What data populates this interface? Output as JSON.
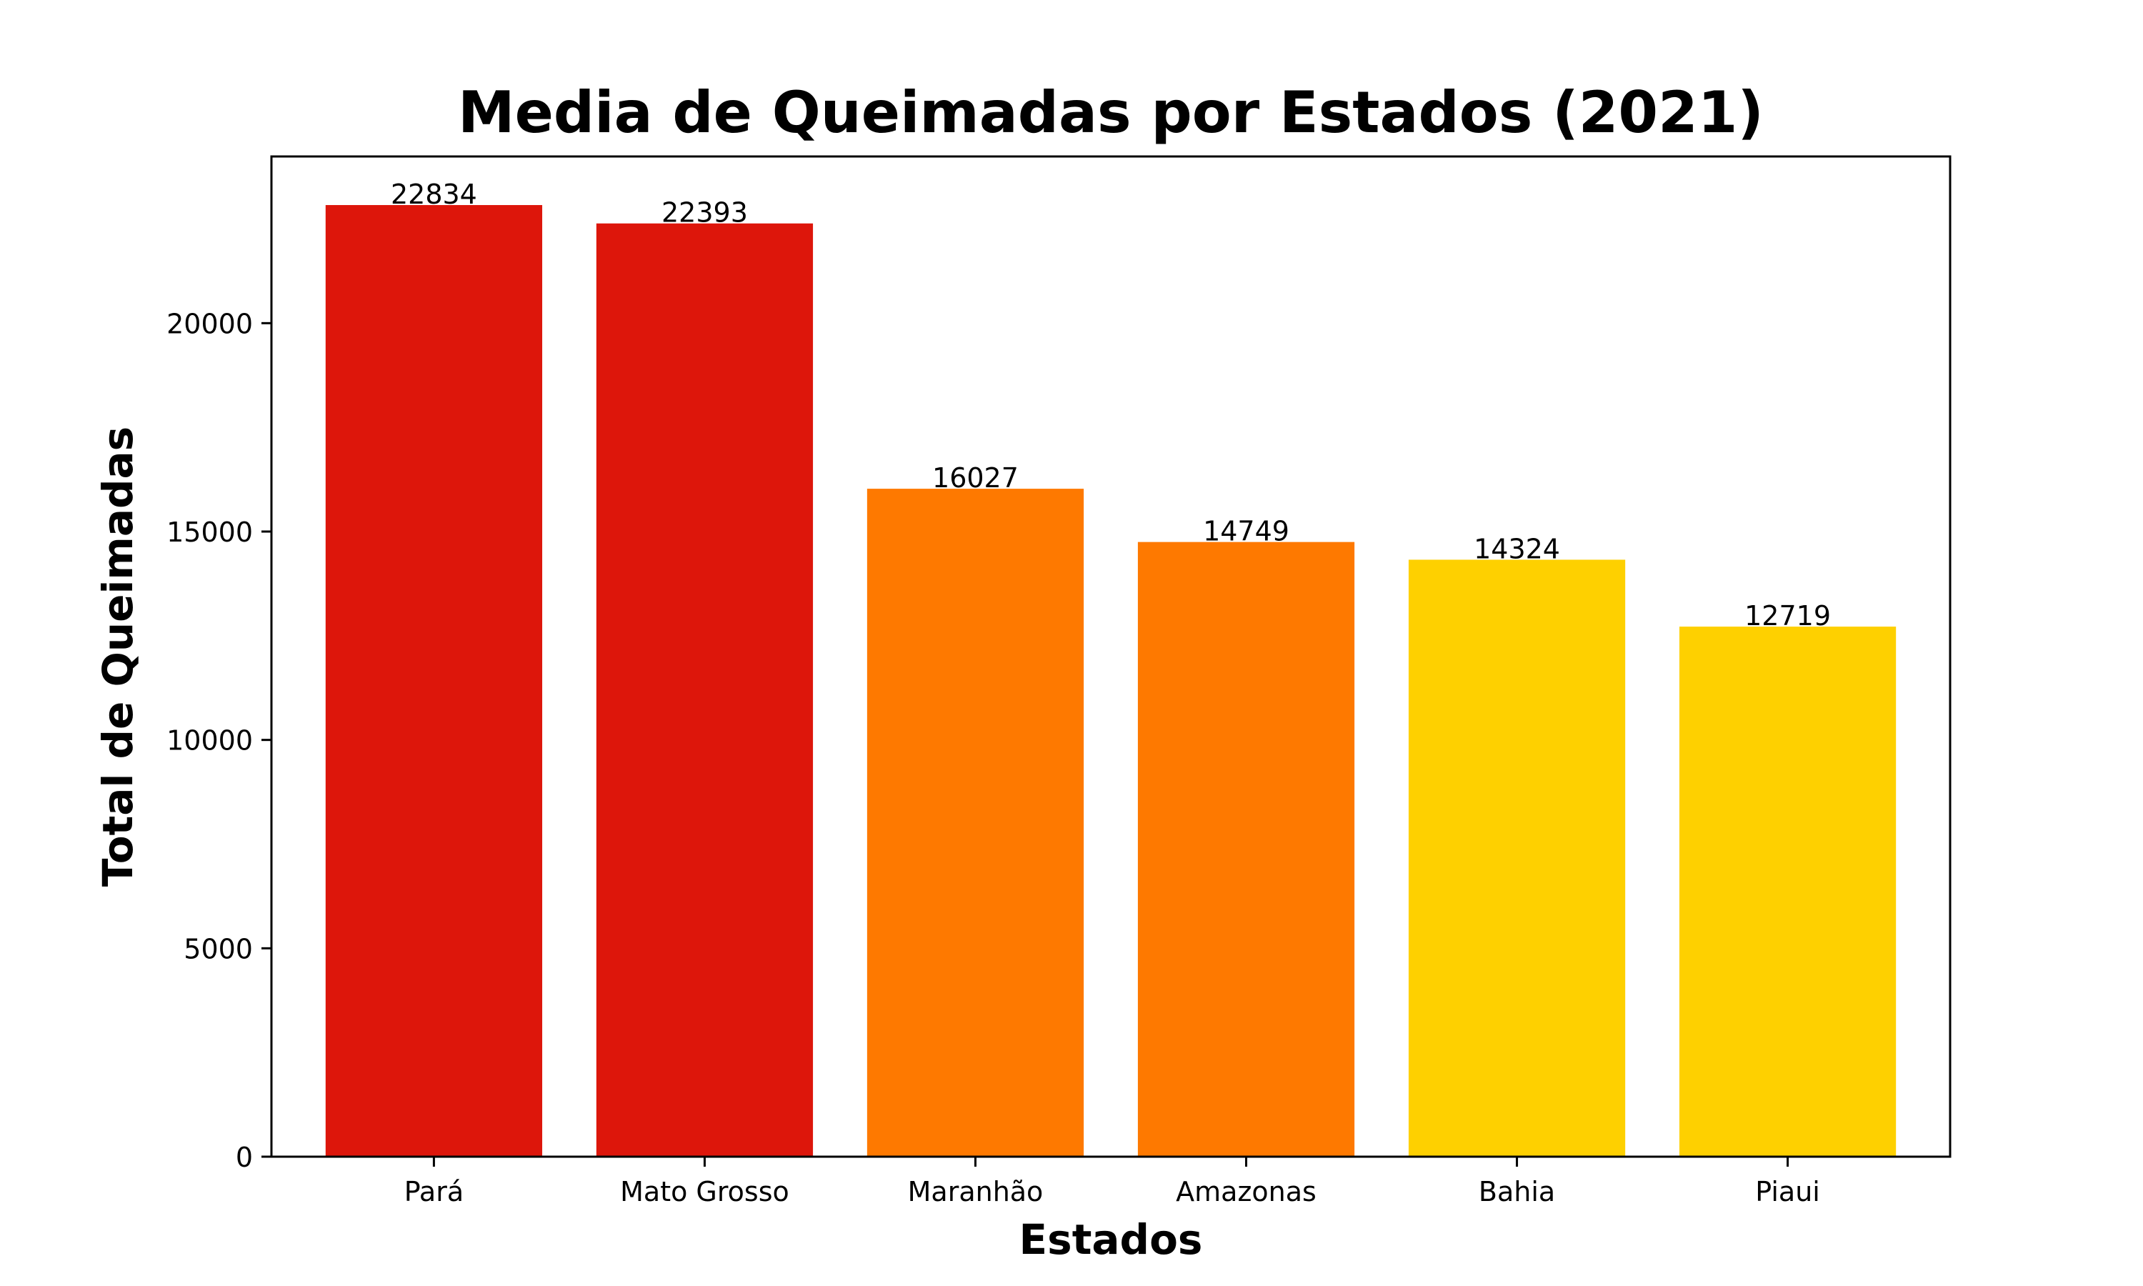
{
  "chart_data": {
    "type": "bar",
    "title": "Media de Queimadas por Estados (2021)",
    "xlabel": "Estados",
    "ylabel": "Total de Queimadas",
    "categories": [
      "Pará",
      "Mato Grosso",
      "Maranhão",
      "Amazonas",
      "Bahia",
      "Piaui"
    ],
    "values": [
      22834,
      22393,
      16027,
      14749,
      14324,
      12719
    ],
    "data_labels": [
      "22834",
      "22393",
      "16027",
      "14749",
      "14324",
      "12719"
    ],
    "bar_colors": [
      "#dd160b",
      "#dd160b",
      "#fe7900",
      "#fe7900",
      "#fed000",
      "#fed000"
    ],
    "ylim": [
      0,
      24000
    ],
    "yticks": [
      0,
      5000,
      10000,
      15000,
      20000
    ],
    "ytick_labels": [
      "0",
      "5000",
      "10000",
      "15000",
      "20000"
    ],
    "grid": false,
    "legend": "none"
  }
}
